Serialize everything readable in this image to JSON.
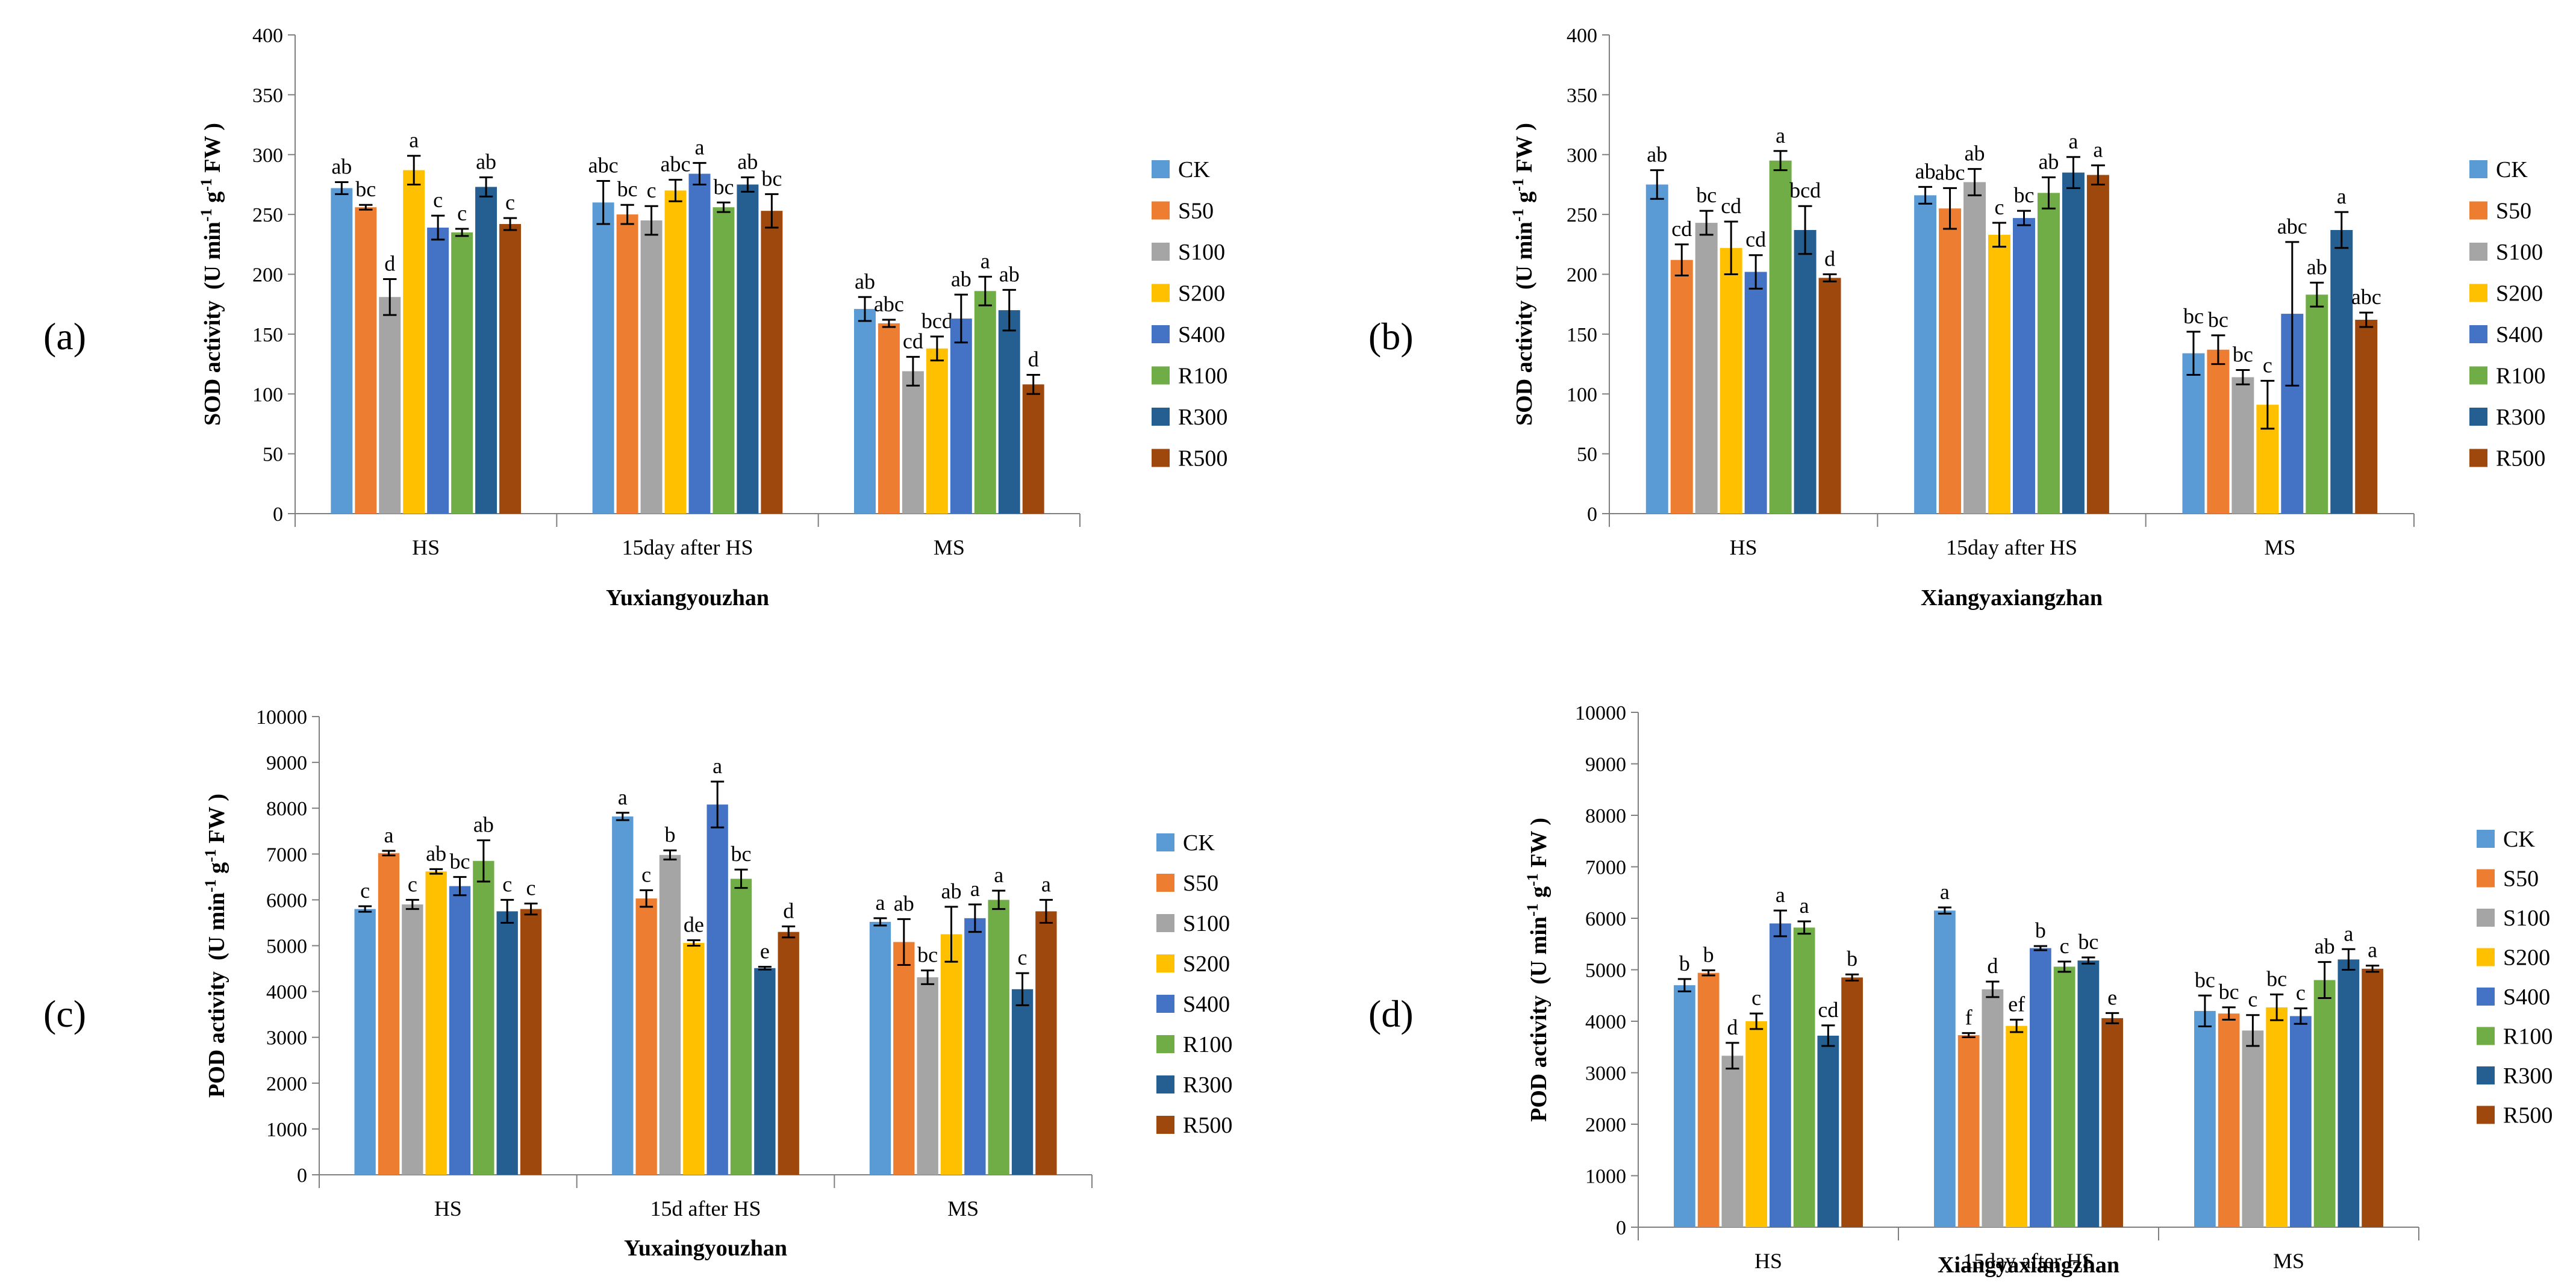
{
  "legend_colors": {
    "CK": "#5b9bd5",
    "S50": "#ed7d31",
    "S100": "#a5a5a5",
    "S200": "#ffc000",
    "S400": "#4472c4",
    "R100": "#70ad47",
    "R300": "#255e91",
    "R500": "#9e480e"
  },
  "chart_data": [
    {
      "type": "bar",
      "panel_letter": "(a)",
      "cultivar": "Yuxiangyouzhan",
      "ylabel_main": "SOD activity",
      "ylabel_unit": "(U min",
      "ylabel_sup": "-1",
      "ylabel_mid": " g",
      "ylabel_sup2": "-1",
      "ylabel_tail": " FW )",
      "ylim": [
        0,
        400
      ],
      "yticks": [
        "0",
        "50",
        "100",
        "150",
        "200",
        "250",
        "300",
        "350",
        "400"
      ],
      "categories": [
        "HS",
        "15day after HS",
        "MS"
      ],
      "series": [
        {
          "name": "CK",
          "values": [
            272,
            260,
            171
          ],
          "errors": [
            5,
            18,
            10
          ],
          "letters": [
            "ab",
            "abc",
            "ab"
          ]
        },
        {
          "name": "S50",
          "values": [
            256,
            250,
            159
          ],
          "errors": [
            2,
            8,
            3
          ],
          "letters": [
            "bc",
            "bc",
            "abc"
          ]
        },
        {
          "name": "S100",
          "values": [
            181,
            245,
            119
          ],
          "errors": [
            15,
            12,
            12
          ],
          "letters": [
            "d",
            "c",
            "cd"
          ]
        },
        {
          "name": "S200",
          "values": [
            287,
            270,
            138
          ],
          "errors": [
            12,
            9,
            10
          ],
          "letters": [
            "a",
            "abc",
            "bcd"
          ]
        },
        {
          "name": "S400",
          "values": [
            239,
            284,
            163
          ],
          "errors": [
            10,
            9,
            20
          ],
          "letters": [
            "c",
            "a",
            "ab"
          ]
        },
        {
          "name": "R100",
          "values": [
            235,
            256,
            186
          ],
          "errors": [
            3,
            4,
            12
          ],
          "letters": [
            "c",
            "bc",
            "a"
          ]
        },
        {
          "name": "R300",
          "values": [
            273,
            275,
            170
          ],
          "errors": [
            8,
            6,
            17
          ],
          "letters": [
            "ab",
            "ab",
            "ab"
          ]
        },
        {
          "name": "R500",
          "values": [
            242,
            253,
            108
          ],
          "errors": [
            5,
            14,
            8
          ],
          "letters": [
            "c",
            "bc",
            "d"
          ]
        }
      ]
    },
    {
      "type": "bar",
      "panel_letter": "(b)",
      "cultivar": "Xiangyaxiangzhan",
      "ylabel_main": "SOD activity",
      "ylabel_unit": "(U min",
      "ylabel_sup": "-1",
      "ylabel_mid": " g",
      "ylabel_sup2": "-1",
      "ylabel_tail": " FW )",
      "ylim": [
        0,
        400
      ],
      "yticks": [
        "0",
        "50",
        "100",
        "150",
        "200",
        "250",
        "300",
        "350",
        "400"
      ],
      "categories": [
        "HS",
        "15day after HS",
        "MS"
      ],
      "series": [
        {
          "name": "CK",
          "values": [
            275,
            266,
            134
          ],
          "errors": [
            12,
            7,
            18
          ],
          "letters": [
            "ab",
            "ab",
            "bc"
          ]
        },
        {
          "name": "S50",
          "values": [
            212,
            255,
            137
          ],
          "errors": [
            13,
            17,
            12
          ],
          "letters": [
            "cd",
            "abc",
            "bc"
          ]
        },
        {
          "name": "S100",
          "values": [
            243,
            277,
            114
          ],
          "errors": [
            10,
            11,
            6
          ],
          "letters": [
            "bc",
            "ab",
            "bc"
          ]
        },
        {
          "name": "S200",
          "values": [
            222,
            233,
            91
          ],
          "errors": [
            22,
            10,
            20
          ],
          "letters": [
            "cd",
            "c",
            "c"
          ]
        },
        {
          "name": "S400",
          "values": [
            202,
            247,
            167
          ],
          "errors": [
            14,
            6,
            60
          ],
          "letters": [
            "cd",
            "bc",
            "abc"
          ]
        },
        {
          "name": "R100",
          "values": [
            295,
            268,
            183
          ],
          "errors": [
            8,
            13,
            10
          ],
          "letters": [
            "a",
            "ab",
            "ab"
          ]
        },
        {
          "name": "R300",
          "values": [
            237,
            285,
            237
          ],
          "errors": [
            20,
            13,
            15
          ],
          "letters": [
            "bcd",
            "a",
            "a"
          ]
        },
        {
          "name": "R500",
          "values": [
            197,
            283,
            162
          ],
          "errors": [
            3,
            8,
            6
          ],
          "letters": [
            "d",
            "a",
            "abc"
          ]
        }
      ]
    },
    {
      "type": "bar",
      "panel_letter": "(c)",
      "cultivar": "Yuxaingyouzhan",
      "ylabel_main": "POD activity",
      "ylabel_unit": "(U min",
      "ylabel_sup": "-1",
      "ylabel_mid": " g",
      "ylabel_sup2": "-1",
      "ylabel_tail": " FW )",
      "ylim": [
        0,
        10000
      ],
      "yticks": [
        "0",
        "1000",
        "2000",
        "3000",
        "4000",
        "5000",
        "6000",
        "7000",
        "8000",
        "9000",
        "10000"
      ],
      "categories": [
        "HS",
        "15d after HS",
        "MS"
      ],
      "series": [
        {
          "name": "CK",
          "values": [
            5800,
            7820,
            5520
          ],
          "errors": [
            60,
            80,
            80
          ],
          "letters": [
            "c",
            "a",
            "a"
          ]
        },
        {
          "name": "S50",
          "values": [
            7020,
            6030,
            5080
          ],
          "errors": [
            50,
            180,
            500
          ],
          "letters": [
            "a",
            "c",
            "ab"
          ]
        },
        {
          "name": "S100",
          "values": [
            5900,
            6980,
            4310
          ],
          "errors": [
            100,
            100,
            150
          ],
          "letters": [
            "c",
            "b",
            "bc"
          ]
        },
        {
          "name": "S200",
          "values": [
            6620,
            5060,
            5250
          ],
          "errors": [
            50,
            60,
            600
          ],
          "letters": [
            "ab",
            "de",
            "ab"
          ]
        },
        {
          "name": "S400",
          "values": [
            6300,
            8080,
            5600
          ],
          "errors": [
            200,
            500,
            300
          ],
          "letters": [
            "bc",
            "a",
            "a"
          ]
        },
        {
          "name": "R100",
          "values": [
            6850,
            6460,
            6000
          ],
          "errors": [
            450,
            200,
            200
          ],
          "letters": [
            "ab",
            "bc",
            "a"
          ]
        },
        {
          "name": "R300",
          "values": [
            5750,
            4510,
            4050
          ],
          "errors": [
            250,
            30,
            350
          ],
          "letters": [
            "c",
            "e",
            "c"
          ]
        },
        {
          "name": "R500",
          "values": [
            5800,
            5300,
            5750
          ],
          "errors": [
            120,
            120,
            250
          ],
          "letters": [
            "c",
            "d",
            "a"
          ]
        }
      ]
    },
    {
      "type": "bar",
      "panel_letter": "(d)",
      "cultivar": "Xiangyaxiangzhan",
      "ylabel_main": "POD activity",
      "ylabel_unit": "(U min",
      "ylabel_sup": "-1",
      "ylabel_mid": " g",
      "ylabel_sup2": "-1",
      "ylabel_tail": " FW )",
      "ylim": [
        0,
        10000
      ],
      "yticks": [
        "0",
        "1000",
        "2000",
        "3000",
        "4000",
        "5000",
        "6000",
        "7000",
        "8000",
        "9000",
        "10000"
      ],
      "categories": [
        "HS",
        "15day after HS",
        "MS"
      ],
      "series": [
        {
          "name": "CK",
          "values": [
            4700,
            6150,
            4200
          ],
          "errors": [
            120,
            60,
            300
          ],
          "letters": [
            "b",
            "a",
            "bc"
          ]
        },
        {
          "name": "S50",
          "values": [
            4940,
            3730,
            4150
          ],
          "errors": [
            50,
            40,
            120
          ],
          "letters": [
            "b",
            "f",
            "bc"
          ]
        },
        {
          "name": "S100",
          "values": [
            3330,
            4620,
            3820
          ],
          "errors": [
            250,
            150,
            300
          ],
          "letters": [
            "d",
            "d",
            "c"
          ]
        },
        {
          "name": "S200",
          "values": [
            4000,
            3910,
            4270
          ],
          "errors": [
            150,
            120,
            250
          ],
          "letters": [
            "c",
            "ef",
            "bc"
          ]
        },
        {
          "name": "S400",
          "values": [
            5900,
            5420,
            4100
          ],
          "errors": [
            250,
            40,
            150
          ],
          "letters": [
            "a",
            "b",
            "c"
          ]
        },
        {
          "name": "R100",
          "values": [
            5820,
            5060,
            4800
          ],
          "errors": [
            120,
            100,
            350
          ],
          "letters": [
            "a",
            "c",
            "ab"
          ]
        },
        {
          "name": "R300",
          "values": [
            3720,
            5180,
            5200
          ],
          "errors": [
            200,
            60,
            200
          ],
          "letters": [
            "cd",
            "bc",
            "a"
          ]
        },
        {
          "name": "R500",
          "values": [
            4850,
            4060,
            5020
          ],
          "errors": [
            60,
            100,
            60
          ],
          "letters": [
            "b",
            "e",
            "a"
          ]
        }
      ]
    }
  ]
}
